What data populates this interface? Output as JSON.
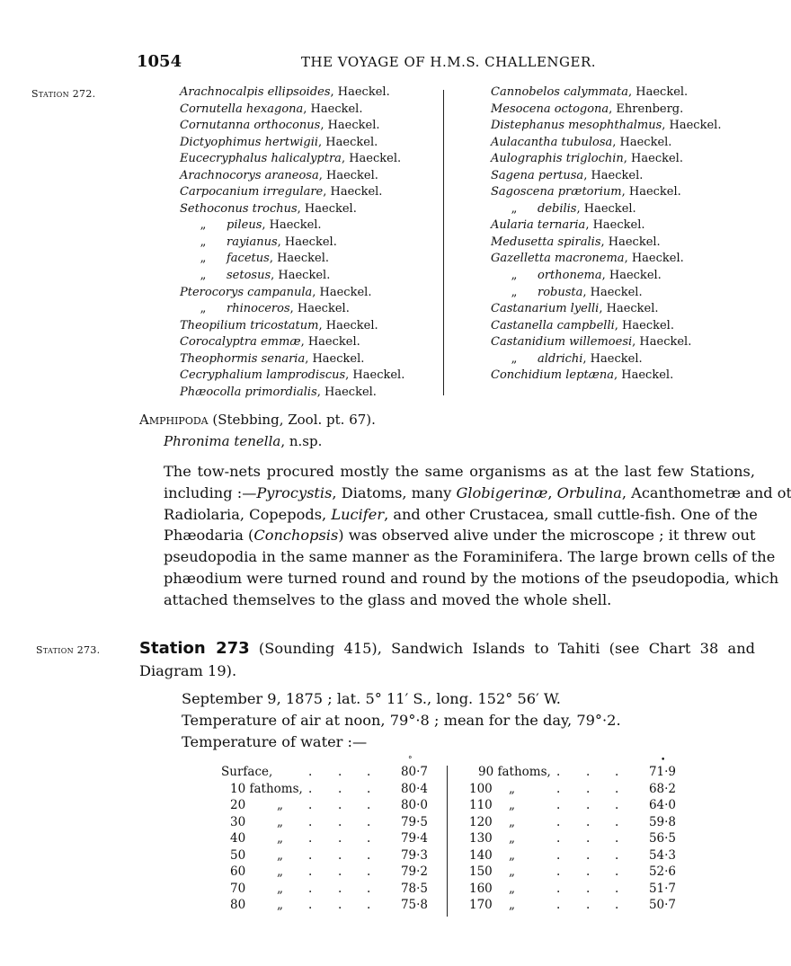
{
  "header": {
    "page_number": "1054",
    "running_title": "THE VOYAGE OF H.M.S. CHALLENGER."
  },
  "station_272": {
    "label": "Station 272.",
    "left_list": [
      {
        "genus": "Arachnocalpis ellipsoides",
        "author": ", Haeckel."
      },
      {
        "genus": "Cornutella hexagona",
        "author": ", Haeckel."
      },
      {
        "genus": "Cornutanna orthoconus",
        "author": ", Haeckel."
      },
      {
        "genus": "Dictyophimus hertwigii",
        "author": ", Haeckel."
      },
      {
        "genus": "Eucecryphalus halicalyptra",
        "author": ", Haeckel."
      },
      {
        "genus": "Arachnocorys araneosa",
        "author": ", Haeckel."
      },
      {
        "genus": "Carpocanium irregulare",
        "author": ", Haeckel."
      },
      {
        "genus": "Sethoconus trochus",
        "author": ", Haeckel."
      },
      {
        "ditto": "„",
        "genus": "pileus",
        "author": ", Haeckel."
      },
      {
        "ditto": "„",
        "genus": "rayianus",
        "author": ", Haeckel."
      },
      {
        "ditto": "„",
        "genus": "facetus",
        "author": ", Haeckel."
      },
      {
        "ditto": "„",
        "genus": "setosus",
        "author": ", Haeckel."
      },
      {
        "genus": "Pterocorys campanula",
        "author": ", Haeckel."
      },
      {
        "ditto": "„",
        "genus": "rhinoceros",
        "author": ", Haeckel."
      },
      {
        "genus": "Theopilium tricostatum",
        "author": ", Haeckel."
      },
      {
        "genus": "Corocalyptra emmæ",
        "author": ", Haeckel."
      },
      {
        "genus": "Theophormis senaria",
        "author": ", Haeckel."
      },
      {
        "genus": "Cecryphalium lamprodiscus",
        "author": ", Haeckel."
      },
      {
        "genus": "Phæocolla primordialis",
        "author": ", Haeckel."
      }
    ],
    "right_list": [
      {
        "genus": "Cannobelos calymmata",
        "author": ", Haeckel."
      },
      {
        "genus": "Mesocena octogona",
        "author": ", Ehrenberg."
      },
      {
        "genus": "Distephanus mesophthalmus",
        "author": ", Haeckel."
      },
      {
        "genus": "Aulacantha tubulosa",
        "author": ", Haeckel."
      },
      {
        "genus": "Aulographis triglochin",
        "author": ", Haeckel."
      },
      {
        "genus": "Sagena pertusa",
        "author": ", Haeckel."
      },
      {
        "genus": "Sagoscena prætorium",
        "author": ", Haeckel."
      },
      {
        "ditto": "„",
        "genus": "debilis",
        "author": ", Haeckel."
      },
      {
        "genus": "Aularia ternaria",
        "author": ", Haeckel."
      },
      {
        "genus": "Medusetta spiralis",
        "author": ", Haeckel."
      },
      {
        "genus": "Gazelletta macronema",
        "author": ", Haeckel."
      },
      {
        "ditto": "„",
        "genus": "orthonema",
        "author": ", Haeckel."
      },
      {
        "ditto": "„",
        "genus": "robusta",
        "author": ", Haeckel."
      },
      {
        "genus": "Castanarium lyelli",
        "author": ", Haeckel."
      },
      {
        "genus": "Castanella campbelli",
        "author": ", Haeckel."
      },
      {
        "genus": "Castanidium willemoesi",
        "author": ", Haeckel."
      },
      {
        "ditto": "„",
        "genus": "aldrichi",
        "author": ", Haeckel."
      },
      {
        "genus": "Conchidium leptæna",
        "author": ", Haeckel."
      }
    ],
    "amphipoda": {
      "group": "Amphipoda",
      "ref": " (Stebbing, Zool. pt. 67).",
      "species": "Phronima tenella",
      "note": ", n.sp."
    },
    "paragraph_lines": [
      [
        {
          "t": "The tow-nets procured mostly the same organisms as at the last few Stations,"
        }
      ],
      [
        {
          "t": "including :—"
        },
        {
          "t": "Pyrocystis",
          "i": true
        },
        {
          "t": ", Diatoms, many "
        },
        {
          "t": "Globigerinæ",
          "i": true
        },
        {
          "t": ", "
        },
        {
          "t": "Orbulina",
          "i": true
        },
        {
          "t": ", Acanthometræ and other"
        }
      ],
      [
        {
          "t": "Radiolaria, Copepods, "
        },
        {
          "t": "Lucifer",
          "i": true
        },
        {
          "t": ", and other Crustacea, small cuttle-fish.  One of the"
        }
      ],
      [
        {
          "t": "Phæodaria ("
        },
        {
          "t": "Conchopsis",
          "i": true
        },
        {
          "t": ") was observed alive under the microscope ; it threw out"
        }
      ],
      [
        {
          "t": "pseudopodia in the same manner as the Foraminifera.  The large brown cells of the"
        }
      ],
      [
        {
          "t": "phæodium were turned round and round by the motions of the pseudopodia, which"
        }
      ],
      [
        {
          "t": "attached themselves to the glass and moved the whole shell."
        }
      ]
    ]
  },
  "station_273": {
    "label": "Station 273.",
    "heading_bold": "Station 273",
    "heading_line1": " (Sounding 415), Sandwich Islands to Tahiti (see Chart 38 and",
    "heading_line2": "Diagram 19).",
    "details": [
      "September 9, 1875 ; lat. 5° 11′ S., long. 152° 56′ W.",
      "Temperature of air at noon, 79°·8 ; mean for the day, 79°·2.",
      "Temperature of water :—"
    ],
    "water_temperature": {
      "degree_mark_left": "°",
      "degree_mark_right": "•",
      "left": [
        {
          "depth": "Surface,",
          "value": "80·7"
        },
        {
          "depth": "10 fathoms,",
          "value": "80·4"
        },
        {
          "depth": "20",
          "ditto": "„",
          "value": "80·0"
        },
        {
          "depth": "30",
          "ditto": "„",
          "value": "79·5"
        },
        {
          "depth": "40",
          "ditto": "„",
          "value": "79·4"
        },
        {
          "depth": "50",
          "ditto": "„",
          "value": "79·3"
        },
        {
          "depth": "60",
          "ditto": "„",
          "value": "79·2"
        },
        {
          "depth": "70",
          "ditto": "„",
          "value": "78·5"
        },
        {
          "depth": "80",
          "ditto": "„",
          "value": "75·8"
        }
      ],
      "right": [
        {
          "depth": "90 fathoms,",
          "value": "71·9"
        },
        {
          "depth": "100",
          "ditto": "„",
          "value": "68·2"
        },
        {
          "depth": "110",
          "ditto": "„",
          "value": "64·0"
        },
        {
          "depth": "120",
          "ditto": "„",
          "value": "59·8"
        },
        {
          "depth": "130",
          "ditto": "„",
          "value": "56·5"
        },
        {
          "depth": "140",
          "ditto": "„",
          "value": "54·3"
        },
        {
          "depth": "150",
          "ditto": "„",
          "value": "52·6"
        },
        {
          "depth": "160",
          "ditto": "„",
          "value": "51·7"
        },
        {
          "depth": "170",
          "ditto": "„",
          "value": "50·7"
        }
      ]
    }
  }
}
